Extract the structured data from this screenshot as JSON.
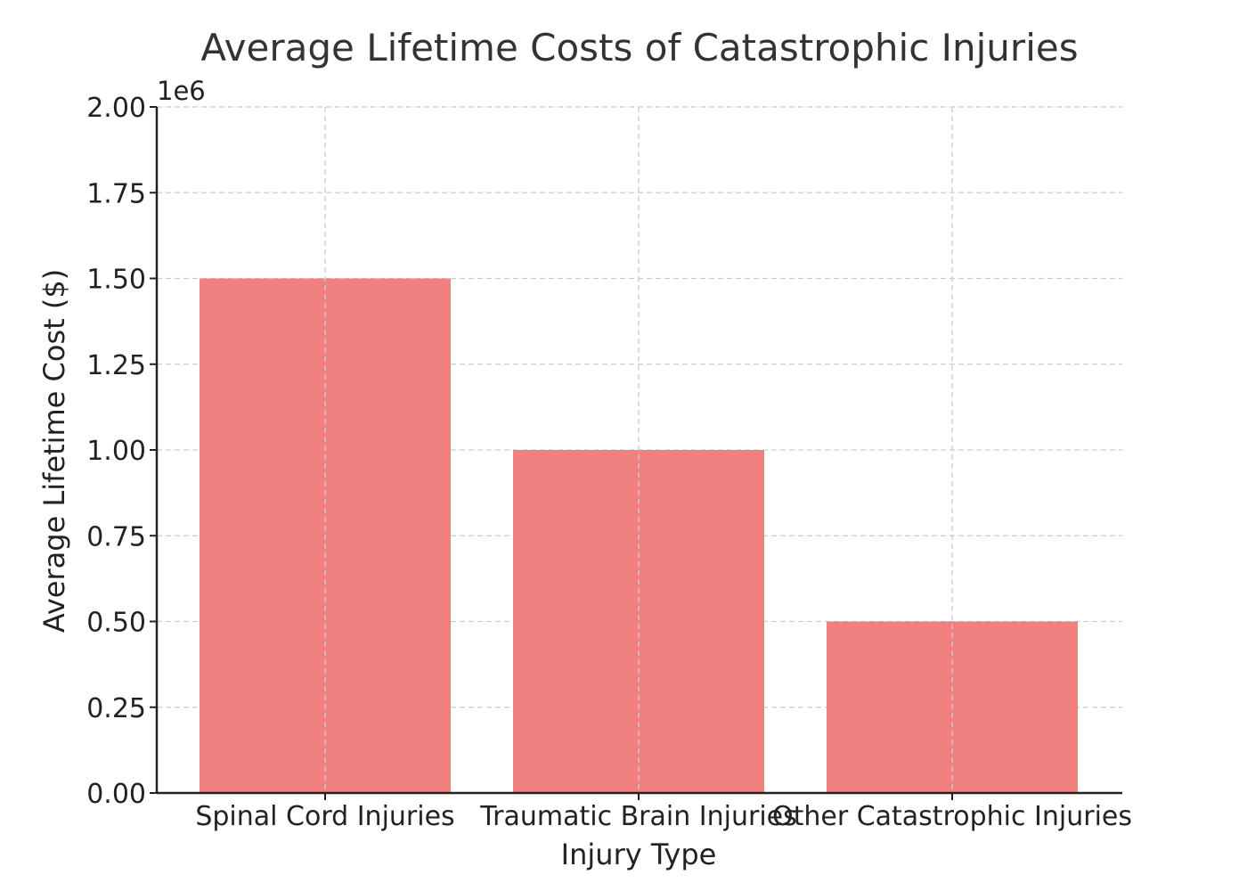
{
  "chart_data": {
    "type": "bar",
    "title": "Average Lifetime Costs of Catastrophic Injuries",
    "xlabel": "Injury Type",
    "ylabel": "Average Lifetime Cost ($)",
    "categories": [
      "Spinal Cord Injuries",
      "Traumatic Brain Injuries",
      "Other Catastrophic Injuries"
    ],
    "values": [
      1500000,
      1000000,
      500000
    ],
    "ylim": [
      0,
      2000000
    ],
    "y_ticks": [
      0,
      250000,
      500000,
      750000,
      1000000,
      1250000,
      1500000,
      1750000,
      2000000
    ],
    "y_tick_labels": [
      "0.00",
      "0.25",
      "0.50",
      "0.75",
      "1.00",
      "1.25",
      "1.50",
      "1.75",
      "2.00"
    ],
    "y_offset_label": "1e6",
    "bar_color": "#f08080",
    "grid": true
  }
}
